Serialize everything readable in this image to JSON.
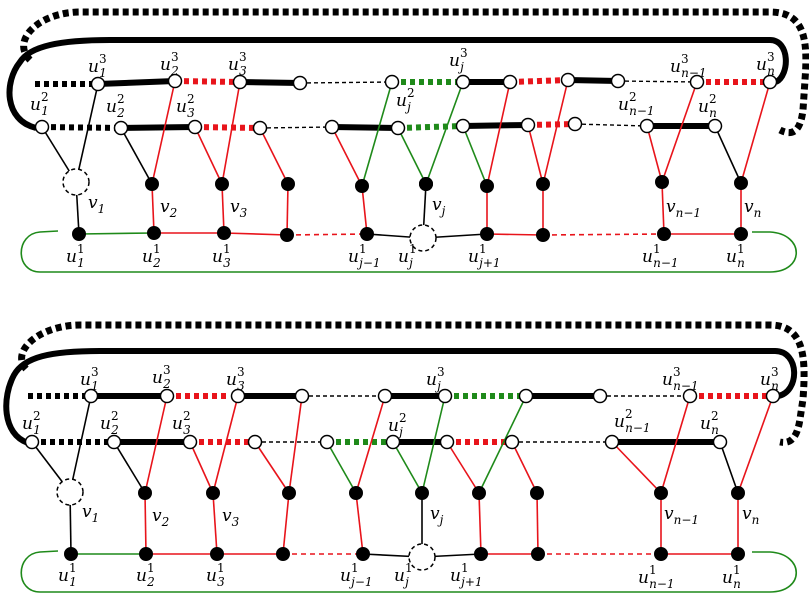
{
  "panels": [
    {
      "id": "top",
      "labels": {
        "u1_3": [
          "u",
          "1",
          "3"
        ],
        "u2_3": [
          "u",
          "2",
          "3"
        ],
        "u3_3": [
          "u",
          "3",
          "3"
        ],
        "uj_3": [
          "u",
          "j",
          "3"
        ],
        "un1_3": [
          "u",
          "n−1",
          "3"
        ],
        "un_3": [
          "u",
          "n",
          "3"
        ],
        "u1_2": [
          "u",
          "1",
          "2"
        ],
        "u2_2": [
          "u",
          "2",
          "2"
        ],
        "u3_2": [
          "u",
          "3",
          "2"
        ],
        "uj_2": [
          "u",
          "j",
          "2"
        ],
        "un1_2": [
          "u",
          "n−1",
          "2"
        ],
        "un_2": [
          "u",
          "n",
          "2"
        ],
        "v1": [
          "v",
          "1",
          ""
        ],
        "v2": [
          "v",
          "2",
          ""
        ],
        "v3": [
          "v",
          "3",
          ""
        ],
        "vj": [
          "v",
          "j",
          ""
        ],
        "vn1": [
          "v",
          "n−1",
          ""
        ],
        "vn": [
          "v",
          "n",
          ""
        ],
        "u1_1": [
          "u",
          "1",
          "1"
        ],
        "u2_1": [
          "u",
          "2",
          "1"
        ],
        "u3_1": [
          "u",
          "3",
          "1"
        ],
        "uj1_1": [
          "u",
          "j−1",
          "1"
        ],
        "uj_1": [
          "u",
          "j",
          "1"
        ],
        "ujp1_1": [
          "u",
          "j+1",
          "1"
        ],
        "un1_1": [
          "u",
          "n−1",
          "1"
        ],
        "un_1": [
          "u",
          "n",
          "1"
        ]
      }
    },
    {
      "id": "bottom",
      "labels": {
        "u1_3": [
          "u",
          "1",
          "3"
        ],
        "u2_3": [
          "u",
          "2",
          "3"
        ],
        "u3_3": [
          "u",
          "3",
          "3"
        ],
        "uj_3": [
          "u",
          "j",
          "3"
        ],
        "un1_3": [
          "u",
          "n−1",
          "3"
        ],
        "un_3": [
          "u",
          "n",
          "3"
        ],
        "u1_2": [
          "u",
          "1",
          "2"
        ],
        "u2_2": [
          "u",
          "2",
          "2"
        ],
        "u3_2": [
          "u",
          "3",
          "2"
        ],
        "uj_2": [
          "u",
          "j",
          "2"
        ],
        "un1_2": [
          "u",
          "n−1",
          "2"
        ],
        "un_2": [
          "u",
          "n",
          "2"
        ],
        "v1": [
          "v",
          "1",
          ""
        ],
        "v2": [
          "v",
          "2",
          ""
        ],
        "v3": [
          "v",
          "3",
          ""
        ],
        "vj": [
          "v",
          "j",
          ""
        ],
        "vn1": [
          "v",
          "n−1",
          ""
        ],
        "vn": [
          "v",
          "n",
          ""
        ],
        "u1_1": [
          "u",
          "1",
          "1"
        ],
        "u2_1": [
          "u",
          "2",
          "1"
        ],
        "u3_1": [
          "u",
          "3",
          "1"
        ],
        "uj1_1": [
          "u",
          "j−1",
          "1"
        ],
        "uj_1": [
          "u",
          "j",
          "1"
        ],
        "ujp1_1": [
          "u",
          "j+1",
          "1"
        ],
        "un1_1": [
          "u",
          "n−1",
          "1"
        ],
        "un_1": [
          "u",
          "n",
          "1"
        ]
      }
    }
  ],
  "colors": {
    "red": "#e8141b",
    "green": "#1f8a1a",
    "black": "#000000"
  }
}
